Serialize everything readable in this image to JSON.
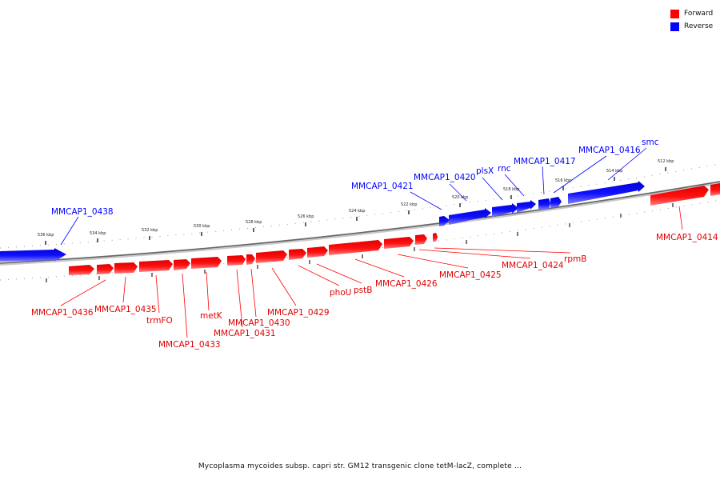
{
  "legend": {
    "forward_label": "Forward",
    "reverse_label": "Reverse",
    "forward_color": "#ff0000",
    "reverse_color": "#0000ff"
  },
  "caption": "Mycoplasma mycoides subsp. capri str. GM12 transgenic clone tetM-lacZ, complete ...",
  "ticks": [
    "536 kbp",
    "534 kbp",
    "532 kbp",
    "530 kbp",
    "528 kbp",
    "526 kbp",
    "524 kbp",
    "522 kbp",
    "520 kbp",
    "518 kbp",
    "516 kbp",
    "514 kbp",
    "512 kbp"
  ],
  "forward_labels": [
    "MMCAP1_0436",
    "MMCAP1_0435",
    "trmFO",
    "MMCAP1_0433",
    "metK",
    "MMCAP1_0431",
    "MMCAP1_0430",
    "MMCAP1_0429",
    "phoU",
    "pstB",
    "MMCAP1_0426",
    "MMCAP1_0425",
    "MMCAP1_0424",
    "rpmB",
    "MMCAP1_0414"
  ],
  "reverse_labels": [
    "MMCAP1_0438",
    "MMCAP1_0421",
    "MMCAP1_0420",
    "plsX",
    "rnc",
    "MMCAP1_0417",
    "MMCAP1_0416",
    "smc"
  ]
}
